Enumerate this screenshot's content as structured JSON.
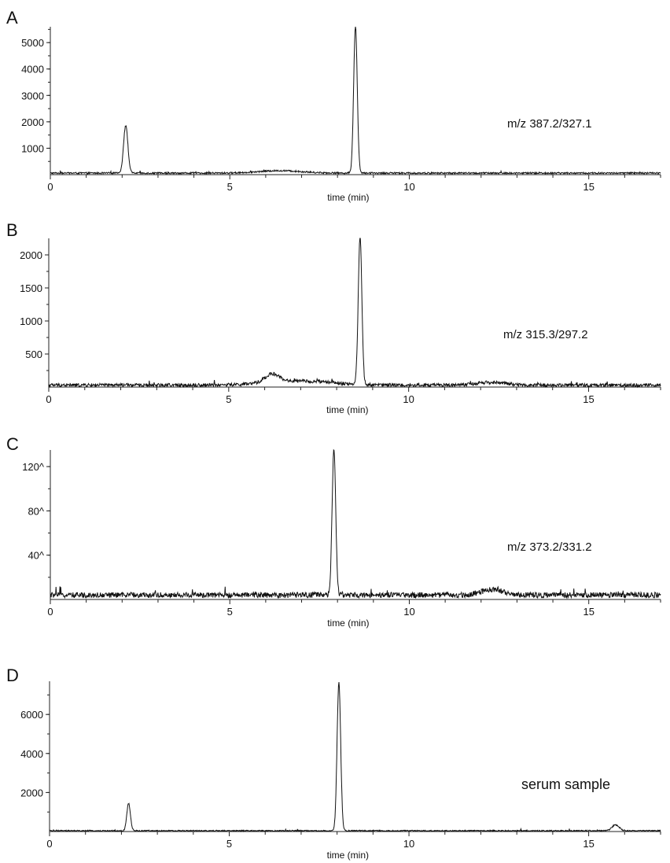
{
  "chart_data": [
    {
      "type": "line",
      "panel": "A",
      "annotation": "m/z 387.2/327.1",
      "xlabel": "time (min)",
      "ylabel": "",
      "xlim": [
        0,
        17
      ],
      "ylim": [
        0,
        5600
      ],
      "x_ticks": [
        0,
        5,
        10,
        15
      ],
      "y_ticks": [
        1000,
        2000,
        3000,
        4000,
        5000
      ],
      "y_tick_labels": [
        "1000",
        "2000",
        "3000",
        "4000",
        "5000"
      ],
      "grid": false,
      "baseline": 60,
      "noise": 30,
      "peaks": [
        {
          "rt": 2.1,
          "height": 1800,
          "width": 0.06
        },
        {
          "rt": 8.5,
          "height": 5550,
          "width": 0.05
        }
      ],
      "humps": [
        {
          "rt": 6.4,
          "height": 90,
          "width": 0.6
        }
      ]
    },
    {
      "type": "line",
      "panel": "B",
      "annotation": "m/z 315.3/297.2",
      "xlabel": "time (min)",
      "ylabel": "",
      "xlim": [
        0,
        17
      ],
      "ylim": [
        0,
        2250
      ],
      "x_ticks": [
        0,
        5,
        10,
        15
      ],
      "y_ticks": [
        500,
        1000,
        1500,
        2000
      ],
      "y_tick_labels": [
        "500",
        "1000",
        "1500",
        "2000"
      ],
      "grid": false,
      "baseline": 30,
      "noise": 25,
      "peaks": [
        {
          "rt": 8.65,
          "height": 2250,
          "width": 0.05
        }
      ],
      "humps": [
        {
          "rt": 6.2,
          "height": 130,
          "width": 0.2
        },
        {
          "rt": 7.0,
          "height": 60,
          "width": 0.9
        },
        {
          "rt": 12.3,
          "height": 40,
          "width": 0.4
        }
      ]
    },
    {
      "type": "line",
      "panel": "C",
      "annotation": "m/z 373.2/331.2",
      "xlabel": "time (min)",
      "ylabel": "",
      "xlim": [
        0,
        17
      ],
      "ylim": [
        0,
        1350
      ],
      "x_ticks": [
        0,
        5,
        10,
        15
      ],
      "y_ticks": [
        400,
        800,
        1200
      ],
      "y_tick_labels": [
        "40^",
        "80^",
        "120^"
      ],
      "grid": false,
      "baseline": 40,
      "noise": 25,
      "peaks": [
        {
          "rt": 7.9,
          "height": 1330,
          "width": 0.05
        }
      ],
      "humps": [
        {
          "rt": 12.3,
          "height": 50,
          "width": 0.3
        }
      ]
    },
    {
      "type": "line",
      "panel": "D",
      "annotation": "serum sample",
      "xlabel": "time (min)",
      "ylabel": "",
      "xlim": [
        0,
        17
      ],
      "ylim": [
        0,
        7700
      ],
      "x_ticks": [
        0,
        5,
        10,
        15
      ],
      "y_ticks": [
        2000,
        4000,
        6000
      ],
      "y_tick_labels": [
        "2000",
        "4000",
        "6000"
      ],
      "grid": false,
      "baseline": 40,
      "noise": 30,
      "peaks": [
        {
          "rt": 2.2,
          "height": 1400,
          "width": 0.05
        },
        {
          "rt": 8.05,
          "height": 7600,
          "width": 0.05
        },
        {
          "rt": 15.75,
          "height": 300,
          "width": 0.1
        }
      ],
      "humps": []
    }
  ]
}
